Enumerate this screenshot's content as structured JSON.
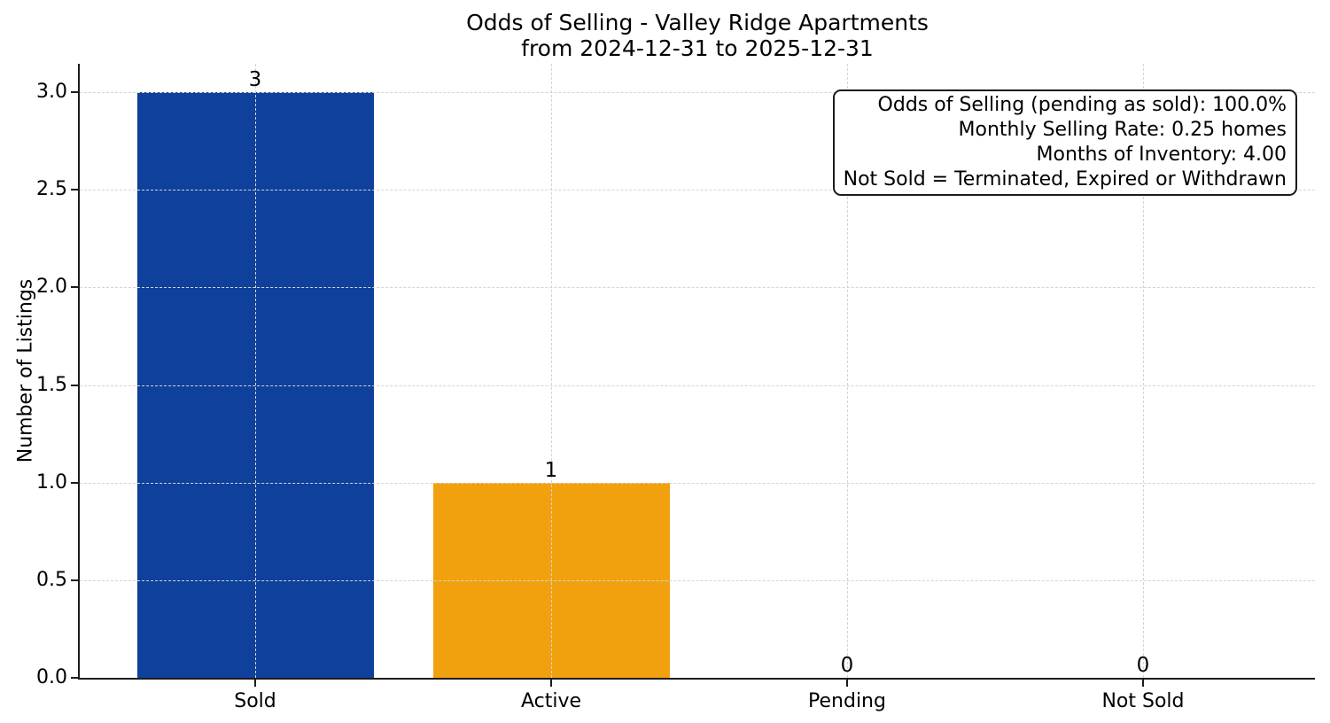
{
  "chart_data": {
    "type": "bar",
    "title": "Odds of Selling - Valley Ridge Apartments",
    "subtitle": "from 2024-12-31 to 2025-12-31",
    "ylabel": "Number of Listings",
    "xlabel": "",
    "categories": [
      "Sold",
      "Active",
      "Pending",
      "Not Sold"
    ],
    "values": [
      3,
      1,
      0,
      0
    ],
    "series": [
      {
        "category": "Sold",
        "value": 3,
        "value_label": "3",
        "color": "#0e409c"
      },
      {
        "category": "Active",
        "value": 1,
        "value_label": "1",
        "color": "#f2a10e"
      },
      {
        "category": "Pending",
        "value": 0,
        "value_label": "0"
      },
      {
        "category": "Not Sold",
        "value": 0,
        "value_label": "0"
      }
    ],
    "yticks": [
      "0.0",
      "0.5",
      "1.0",
      "1.5",
      "2.0",
      "2.5",
      "3.0"
    ],
    "ylim": [
      0,
      3.15
    ],
    "grid": "dashed, both axes, drawn above bars",
    "legend": null,
    "annotation_box": {
      "position": "top-right",
      "align": "right",
      "lines": [
        "Odds of Selling (pending as sold): 100.0%",
        "Monthly Selling Rate: 0.25 homes",
        "Months of Inventory: 4.00",
        "Not Sold = Terminated, Expired or Withdrawn"
      ]
    },
    "colors": {
      "sold_bar": "#0e409c",
      "active_bar": "#f2a10e",
      "gridline": "#d4d4d4",
      "axis": "#1c1c1c",
      "text": "#000000",
      "background": "#ffffff"
    }
  }
}
